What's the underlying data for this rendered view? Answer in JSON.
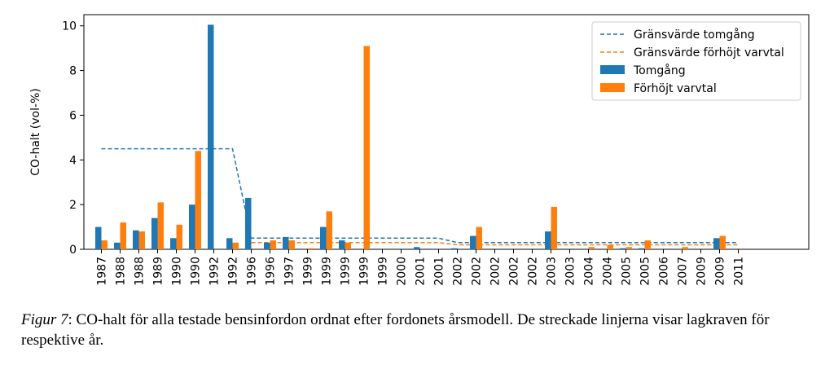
{
  "chart_data": {
    "type": "bar",
    "ylabel": "CO-halt (vol-%)",
    "xlabel": "",
    "ylim": [
      0,
      10.5
    ],
    "yticks": [
      0,
      2,
      4,
      6,
      8,
      10
    ],
    "categories": [
      "1987",
      "1988",
      "1988",
      "1989",
      "1990",
      "1990",
      "1992",
      "1992",
      "1996",
      "1996",
      "1997",
      "1999",
      "1999",
      "1999",
      "1999",
      "1999",
      "2000",
      "2001",
      "2001",
      "2002",
      "2002",
      "2002",
      "2002",
      "2002",
      "2003",
      "2003",
      "2004",
      "2004",
      "2005",
      "2005",
      "2006",
      "2007",
      "2009",
      "2009",
      "2011"
    ],
    "series": [
      {
        "name": "Tomgång",
        "kind": "bar",
        "color": "#1f77b4",
        "values": [
          1.0,
          0.3,
          0.85,
          1.4,
          0.5,
          2.0,
          10.05,
          0.5,
          2.3,
          0.3,
          0.55,
          0.0,
          1.0,
          0.4,
          0.0,
          0.0,
          0.0,
          0.1,
          0.0,
          0.05,
          0.6,
          0.0,
          0.0,
          0.0,
          0.8,
          0.0,
          0.0,
          0.0,
          0.05,
          0.05,
          0.0,
          0.0,
          0.0,
          0.5,
          0.0
        ]
      },
      {
        "name": "Förhöjt varvtal",
        "kind": "bar",
        "color": "#ff7f0e",
        "values": [
          0.4,
          1.2,
          0.8,
          2.1,
          1.1,
          4.4,
          0.0,
          0.3,
          0.0,
          0.4,
          0.4,
          0.05,
          1.7,
          0.3,
          9.1,
          0.0,
          0.0,
          0.0,
          0.0,
          0.0,
          1.0,
          0.0,
          0.0,
          0.0,
          1.9,
          0.0,
          0.1,
          0.2,
          0.1,
          0.4,
          0.0,
          0.1,
          0.0,
          0.6,
          0.0
        ]
      },
      {
        "name": "Gränsvärde tomgång",
        "kind": "dashed-line",
        "color": "#1f77b4",
        "values": [
          4.5,
          4.5,
          4.5,
          4.5,
          4.5,
          4.5,
          4.5,
          4.5,
          0.5,
          0.5,
          0.5,
          0.5,
          0.5,
          0.5,
          0.5,
          0.5,
          0.5,
          0.5,
          0.5,
          0.3,
          0.3,
          0.3,
          0.3,
          0.3,
          0.3,
          0.3,
          0.3,
          0.3,
          0.3,
          0.3,
          0.3,
          0.3,
          0.3,
          0.3,
          0.3
        ]
      },
      {
        "name": "Gränsvärde förhöjt varvtal",
        "kind": "dashed-line",
        "color": "#ff7f0e",
        "values": [
          null,
          null,
          null,
          null,
          null,
          null,
          null,
          null,
          0.3,
          0.3,
          0.3,
          0.3,
          0.3,
          0.3,
          0.3,
          0.3,
          0.3,
          0.3,
          0.3,
          0.2,
          0.2,
          0.2,
          0.2,
          0.2,
          0.2,
          0.2,
          0.2,
          0.2,
          0.2,
          0.2,
          0.2,
          0.2,
          0.2,
          0.2,
          0.2
        ]
      }
    ],
    "legend": {
      "placement": "top-right",
      "order": [
        "Gränsvärde tomgång",
        "Gränsvärde förhöjt varvtal",
        "Tomgång",
        "Förhöjt varvtal"
      ]
    },
    "grid": false
  },
  "caption": {
    "number": "Figur 7",
    "text": ": CO-halt för alla testade bensinfordon ordnat efter fordonets årsmodell. De streckade linjerna visar lagkraven för respektive år."
  }
}
